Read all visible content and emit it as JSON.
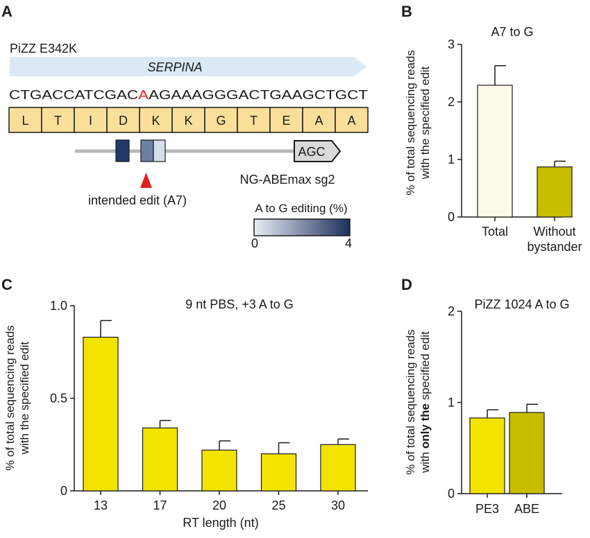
{
  "panel_a": {
    "letter": "A",
    "title": "PiZZ E342K",
    "gene": "SERPINA",
    "dna_before": "CTGACCATCGAC",
    "dna_edit": "A",
    "dna_after": "AGAAAGGGACTGAAGCTGCT",
    "amino_acids": [
      "L",
      "T",
      "I",
      "D",
      "K",
      "K",
      "G",
      "T",
      "E",
      "A",
      "A"
    ],
    "pam": "AGC",
    "intended_edit": "intended edit (A7)",
    "guide_name": "NG-ABEmax sg2",
    "scale_title": "A to G editing (%)",
    "scale_min": "0",
    "scale_max": "4",
    "colors": {
      "edit_base": "#e02020",
      "amino_fill": "#fadf9a",
      "gene_arrow": "#dbe8f5",
      "arrowhead": "#e02020",
      "scale_low": "#e8edf6",
      "scale_high": "#1d2f5c"
    }
  },
  "chart_data": [
    {
      "id": "B",
      "type": "bar",
      "title": "A7 to G",
      "ylabel_lines": [
        "% of total sequencing reads",
        "with the specified edit"
      ],
      "categories": [
        "Total",
        "Without bystander"
      ],
      "category_lines": [
        [
          "Total"
        ],
        [
          "Without",
          "bystander"
        ]
      ],
      "values": [
        2.29,
        0.87
      ],
      "errors": [
        0.34,
        0.1
      ],
      "colors": [
        "#fefae8",
        "#c8bd00"
      ],
      "ylim": [
        0,
        3
      ],
      "yticks": [
        0,
        1,
        2,
        3
      ],
      "ytick_labels": [
        "0",
        "1",
        "2",
        "3"
      ]
    },
    {
      "id": "C",
      "type": "bar",
      "title": "9 nt PBS, +3 A to G",
      "xlabel": "RT length (nt)",
      "ylabel_lines": [
        "% of total sequencing reads",
        "with the specified edit"
      ],
      "categories": [
        "13",
        "17",
        "20",
        "25",
        "30"
      ],
      "values": [
        0.83,
        0.34,
        0.22,
        0.2,
        0.25
      ],
      "errors": [
        0.09,
        0.04,
        0.05,
        0.06,
        0.03
      ],
      "colors": [
        "#f3e400",
        "#f3e400",
        "#f3e400",
        "#f3e400",
        "#f3e400"
      ],
      "ylim": [
        0,
        1.0
      ],
      "yticks": [
        0,
        0.5,
        1.0
      ],
      "ytick_labels": [
        "0",
        "0.5",
        "1.0"
      ]
    },
    {
      "id": "D",
      "type": "bar",
      "title": "PiZZ 1024 A to G",
      "ylabel_lines": [
        {
          "parts": [
            {
              "text": "% of total sequencing reads"
            }
          ]
        },
        {
          "parts": [
            {
              "text": "with "
            },
            {
              "text": "only the",
              "bold": true
            },
            {
              "text": " specified edit"
            }
          ]
        }
      ],
      "categories": [
        "PE3",
        "ABE"
      ],
      "values": [
        0.83,
        0.89
      ],
      "errors": [
        0.09,
        0.09
      ],
      "colors": [
        "#f3e400",
        "#c8bd00"
      ],
      "ylim": [
        0,
        2
      ],
      "yticks": [
        0,
        1,
        2
      ],
      "ytick_labels": [
        "0",
        "1",
        "2"
      ]
    }
  ]
}
